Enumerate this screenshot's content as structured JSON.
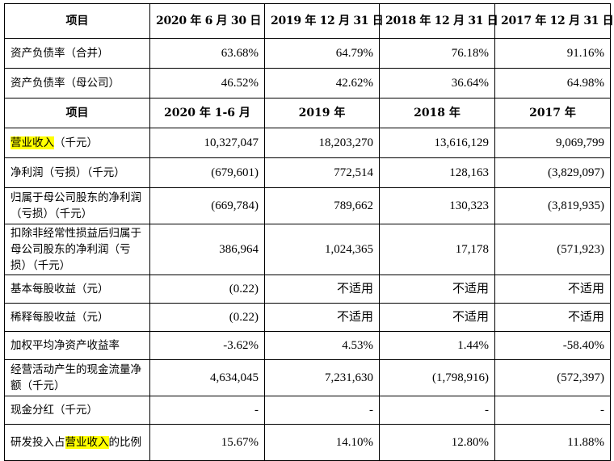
{
  "header1": [
    "项目",
    "2020 年 6 月 30 日",
    "2019 年 12 月 31 日",
    "2018 年 12 月 31 日",
    "2017 年 12 月 31 日"
  ],
  "rows1": [
    {
      "label": "资产负债率（合并）",
      "values": [
        "63.68%",
        "64.79%",
        "76.18%",
        "91.16%"
      ]
    },
    {
      "label": "资产负债率（母公司）",
      "values": [
        "46.52%",
        "42.62%",
        "36.64%",
        "64.98%"
      ]
    }
  ],
  "header2": [
    "项目",
    "2020 年 1-6 月",
    "2019 年",
    "2018 年",
    "2017 年"
  ],
  "revenue_row": {
    "highlight": "营业收入",
    "rest": "（千元）",
    "values": [
      "10,327,047",
      "18,203,270",
      "13,616,129",
      "9,069,799"
    ]
  },
  "rows2": [
    {
      "label": "净利润（亏损）（千元）",
      "values": [
        "(679,601)",
        "772,514",
        "128,163",
        "(3,829,097)"
      ]
    },
    {
      "label": "归属于母公司股东的净利润（亏损）（千元）",
      "values": [
        "(669,784)",
        "789,662",
        "130,323",
        "(3,819,935)"
      ]
    },
    {
      "label": "扣除非经常性损益后归属于母公司股东的净利润（亏损）（千元）",
      "values": [
        "386,964",
        "1,024,365",
        "17,178",
        "(571,923)"
      ]
    },
    {
      "label": "基本每股收益（元）",
      "values": [
        "(0.22)",
        "不适用",
        "不适用",
        "不适用"
      ]
    },
    {
      "label": "稀释每股收益（元）",
      "values": [
        "(0.22)",
        "不适用",
        "不适用",
        "不适用"
      ]
    },
    {
      "label": "加权平均净资产收益率",
      "values": [
        "-3.62%",
        "4.53%",
        "1.44%",
        "-58.40%"
      ]
    },
    {
      "label": "经营活动产生的现金流量净额（千元）",
      "values": [
        "4,634,045",
        "7,231,630",
        "(1,798,916)",
        "(572,397)"
      ]
    },
    {
      "label": "现金分红（千元）",
      "values": [
        "-",
        "-",
        "-",
        "-"
      ]
    }
  ],
  "rd_row": {
    "prefix": "研发投入占",
    "highlight": "营业收入",
    "suffix": "的比例",
    "values": [
      "15.67%",
      "14.10%",
      "12.80%",
      "11.88%"
    ]
  }
}
